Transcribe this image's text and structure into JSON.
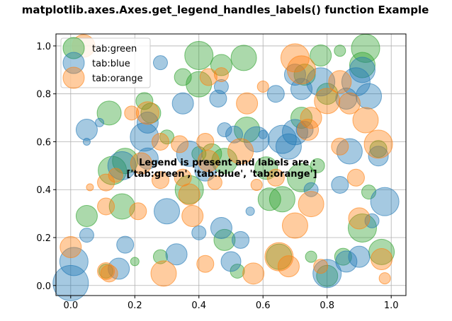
{
  "chart_data": {
    "type": "scatter",
    "title": "matplotlib.axes.Axes.get_legend_handles_labels() function Example",
    "xlabel": "",
    "ylabel": "",
    "xlim": [
      -0.046,
      1.046
    ],
    "ylim": [
      -0.042,
      1.05
    ],
    "xticks": [
      "0.0",
      "0.2",
      "0.4",
      "0.6",
      "0.8",
      "1.0"
    ],
    "yticks": [
      "0.0",
      "0.2",
      "0.4",
      "0.6",
      "0.8",
      "1.0"
    ],
    "grid": true,
    "legend_placement": "upper-left",
    "alpha": 0.4,
    "annotation": [
      "Legend is present and labels are :",
      "['tab:green', 'tab:blue', 'tab:orange']"
    ],
    "series": [
      {
        "name": "tab:green",
        "color": "#2ca02c",
        "points": [
          [
            0.01,
            0.99,
            450
          ],
          [
            0.12,
            0.72,
            578
          ],
          [
            0.05,
            0.29,
            450
          ],
          [
            0.16,
            0.33,
            648
          ],
          [
            0.13,
            0.48,
            800
          ],
          [
            0.17,
            0.52,
            648
          ],
          [
            0.25,
            0.72,
            392
          ],
          [
            0.4,
            0.84,
            648
          ],
          [
            0.4,
            0.96,
            800
          ],
          [
            0.47,
            0.92,
            450
          ],
          [
            0.54,
            0.95,
            648
          ],
          [
            0.55,
            0.65,
            648
          ],
          [
            0.61,
            0.49,
            512
          ],
          [
            0.62,
            0.36,
            512
          ],
          [
            0.65,
            0.12,
            648
          ],
          [
            0.66,
            0.36,
            648
          ],
          [
            0.72,
            0.45,
            800
          ],
          [
            0.72,
            0.7,
            450
          ],
          [
            0.73,
            0.88,
            450
          ],
          [
            0.8,
            0.8,
            450
          ],
          [
            0.78,
            0.96,
            450
          ],
          [
            0.92,
            0.99,
            800
          ],
          [
            0.91,
            0.92,
            648
          ],
          [
            0.93,
            0.39,
            200
          ],
          [
            0.91,
            0.24,
            800
          ],
          [
            0.97,
            0.14,
            648
          ],
          [
            0.8,
            0.04,
            450
          ],
          [
            0.85,
            0.12,
            288
          ],
          [
            0.84,
            0.98,
            128
          ],
          [
            0.37,
            0.4,
            800
          ],
          [
            0.48,
            0.19,
            450
          ],
          [
            0.52,
            0.06,
            200
          ],
          [
            0.28,
            0.12,
            200
          ],
          [
            0.2,
            0.1,
            72
          ],
          [
            0.11,
            0.06,
            200
          ],
          [
            0.35,
            0.87,
            288
          ],
          [
            0.23,
            0.77,
            288
          ],
          [
            0.44,
            0.55,
            392
          ],
          [
            0.48,
            0.52,
            648
          ],
          [
            0.75,
            0.12,
            128
          ],
          [
            0.96,
            0.57,
            288
          ],
          [
            0.77,
            0.5,
            200
          ],
          [
            0.3,
            0.62,
            200
          ],
          [
            0.4,
            0.55,
            200
          ]
        ]
      },
      {
        "name": "tab:blue",
        "color": "#1f77b4",
        "points": [
          [
            0.0,
            0.01,
            1250
          ],
          [
            0.01,
            0.1,
            800
          ],
          [
            0.05,
            0.21,
            200
          ],
          [
            0.05,
            0.65,
            450
          ],
          [
            0.05,
            0.6,
            50
          ],
          [
            0.16,
            0.5,
            800
          ],
          [
            0.15,
            0.07,
            450
          ],
          [
            0.17,
            0.17,
            288
          ],
          [
            0.23,
            0.62,
            800
          ],
          [
            0.24,
            0.68,
            450
          ],
          [
            0.24,
            0.53,
            450
          ],
          [
            0.3,
            0.31,
            648
          ],
          [
            0.33,
            0.13,
            450
          ],
          [
            0.35,
            0.76,
            450
          ],
          [
            0.37,
            0.55,
            648
          ],
          [
            0.4,
            0.22,
            200
          ],
          [
            0.42,
            0.48,
            450
          ],
          [
            0.47,
            0.24,
            450
          ],
          [
            0.47,
            0.83,
            200
          ],
          [
            0.46,
            0.78,
            288
          ],
          [
            0.48,
            0.65,
            200
          ],
          [
            0.51,
            0.63,
            288
          ],
          [
            0.5,
            0.1,
            392
          ],
          [
            0.53,
            0.19,
            288
          ],
          [
            0.56,
            0.31,
            72
          ],
          [
            0.58,
            0.61,
            648
          ],
          [
            0.6,
            0.63,
            72
          ],
          [
            0.64,
            0.8,
            288
          ],
          [
            0.66,
            0.61,
            800
          ],
          [
            0.68,
            0.58,
            648
          ],
          [
            0.7,
            0.88,
            450
          ],
          [
            0.72,
            0.82,
            450
          ],
          [
            0.7,
            0.64,
            648
          ],
          [
            0.75,
            0.4,
            200
          ],
          [
            0.78,
            0.85,
            800
          ],
          [
            0.8,
            0.05,
            800
          ],
          [
            0.86,
            0.78,
            450
          ],
          [
            0.87,
            0.56,
            648
          ],
          [
            0.89,
            0.85,
            800
          ],
          [
            0.91,
            0.9,
            648
          ],
          [
            0.93,
            0.79,
            648
          ],
          [
            0.96,
            0.54,
            392
          ],
          [
            0.98,
            0.35,
            800
          ],
          [
            0.94,
            0.27,
            200
          ],
          [
            0.9,
            0.12,
            450
          ],
          [
            0.86,
            0.1,
            450
          ],
          [
            0.84,
            0.42,
            288
          ],
          [
            0.73,
            0.65,
            288
          ],
          [
            0.28,
            0.93,
            200
          ],
          [
            0.09,
            0.68,
            72
          ]
        ]
      },
      {
        "name": "tab:orange",
        "color": "#ff7f0e",
        "points": [
          [
            0.04,
            1.0,
            512
          ],
          [
            0.0,
            0.16,
            450
          ],
          [
            0.11,
            0.06,
            288
          ],
          [
            0.12,
            0.05,
            288
          ],
          [
            0.11,
            0.33,
            288
          ],
          [
            0.11,
            0.43,
            288
          ],
          [
            0.14,
            0.46,
            200
          ],
          [
            0.19,
            0.72,
            200
          ],
          [
            0.21,
            0.31,
            288
          ],
          [
            0.22,
            0.51,
            450
          ],
          [
            0.24,
            0.72,
            512
          ],
          [
            0.28,
            0.44,
            288
          ],
          [
            0.28,
            0.6,
            288
          ],
          [
            0.29,
            0.05,
            648
          ],
          [
            0.34,
            0.59,
            288
          ],
          [
            0.37,
            0.38,
            450
          ],
          [
            0.38,
            0.29,
            450
          ],
          [
            0.42,
            0.6,
            288
          ],
          [
            0.43,
            0.52,
            450
          ],
          [
            0.45,
            0.43,
            200
          ],
          [
            0.43,
            0.87,
            288
          ],
          [
            0.47,
            0.88,
            200
          ],
          [
            0.53,
            0.56,
            648
          ],
          [
            0.55,
            0.76,
            450
          ],
          [
            0.57,
            0.05,
            450
          ],
          [
            0.58,
            0.42,
            128
          ],
          [
            0.64,
            0.45,
            288
          ],
          [
            0.65,
            0.12,
            800
          ],
          [
            0.68,
            0.08,
            450
          ],
          [
            0.7,
            0.25,
            648
          ],
          [
            0.7,
            0.95,
            800
          ],
          [
            0.72,
            0.9,
            800
          ],
          [
            0.74,
            0.65,
            450
          ],
          [
            0.75,
            0.7,
            450
          ],
          [
            0.75,
            0.34,
            648
          ],
          [
            0.78,
            0.08,
            200
          ],
          [
            0.84,
            0.85,
            512
          ],
          [
            0.84,
            0.58,
            288
          ],
          [
            0.87,
            0.76,
            450
          ],
          [
            0.89,
            0.45,
            288
          ],
          [
            0.9,
            0.28,
            450
          ],
          [
            0.92,
            0.69,
            648
          ],
          [
            0.96,
            0.59,
            800
          ],
          [
            0.97,
            0.11,
            450
          ],
          [
            0.98,
            0.03,
            128
          ],
          [
            0.42,
            0.09,
            288
          ],
          [
            0.8,
            0.77,
            648
          ],
          [
            0.6,
            0.83,
            128
          ],
          [
            0.35,
            0.45,
            288
          ],
          [
            0.06,
            0.41,
            50
          ]
        ]
      }
    ]
  }
}
